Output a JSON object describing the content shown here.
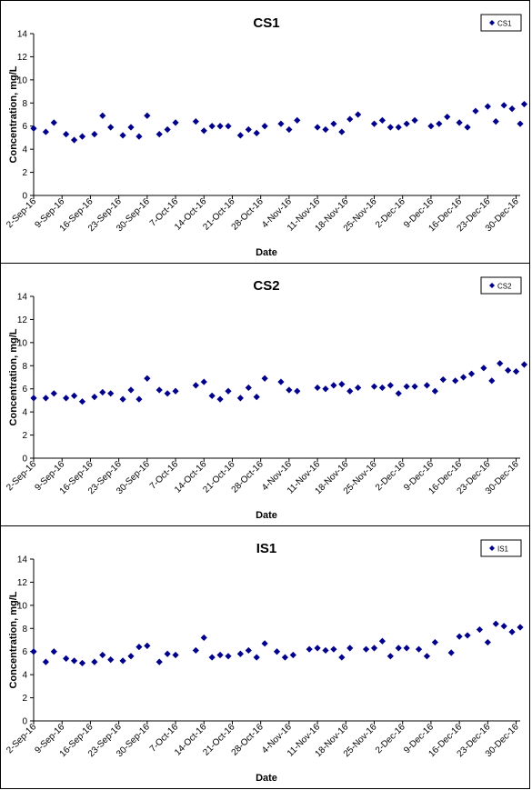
{
  "chart_data": [
    {
      "type": "scatter",
      "title": "CS1",
      "xlabel": "Date",
      "ylabel": "Concentration, mg/L",
      "ylim": [
        0,
        14
      ],
      "yticks": [
        "0",
        "2",
        "4",
        "6",
        "8",
        "10",
        "12",
        "14"
      ],
      "xticks": [
        "2-Sep-16",
        "9-Sep-16",
        "16-Sep-16",
        "23-Sep-16",
        "30-Sep-16",
        "7-Oct-16",
        "14-Oct-16",
        "21-Oct-16",
        "28-Oct-16",
        "4-Nov-16",
        "11-Nov-16",
        "18-Nov-16",
        "25-Nov-16",
        "2-Dec-16",
        "9-Dec-16",
        "16-Dec-16",
        "23-Dec-16",
        "30-Dec-16"
      ],
      "legend": "top-right",
      "marker_color": "#00008B",
      "series": [
        {
          "name": "CS1",
          "points": [
            [
              "2-Sep-16",
              5.8
            ],
            [
              "5-Sep-16",
              5.5
            ],
            [
              "7-Sep-16",
              6.3
            ],
            [
              "10-Sep-16",
              5.3
            ],
            [
              "12-Sep-16",
              4.8
            ],
            [
              "14-Sep-16",
              5.1
            ],
            [
              "17-Sep-16",
              5.3
            ],
            [
              "19-Sep-16",
              6.9
            ],
            [
              "21-Sep-16",
              5.9
            ],
            [
              "24-Sep-16",
              5.2
            ],
            [
              "26-Sep-16",
              5.9
            ],
            [
              "28-Sep-16",
              5.1
            ],
            [
              "30-Sep-16",
              6.9
            ],
            [
              "3-Oct-16",
              5.3
            ],
            [
              "5-Oct-16",
              5.7
            ],
            [
              "7-Oct-16",
              6.3
            ],
            [
              "12-Oct-16",
              6.4
            ],
            [
              "14-Oct-16",
              5.6
            ],
            [
              "16-Oct-16",
              6.0
            ],
            [
              "18-Oct-16",
              6.0
            ],
            [
              "20-Oct-16",
              6.0
            ],
            [
              "23-Oct-16",
              5.2
            ],
            [
              "25-Oct-16",
              5.7
            ],
            [
              "27-Oct-16",
              5.4
            ],
            [
              "29-Oct-16",
              6.0
            ],
            [
              "2-Nov-16",
              6.2
            ],
            [
              "4-Nov-16",
              5.7
            ],
            [
              "6-Nov-16",
              6.5
            ],
            [
              "11-Nov-16",
              5.9
            ],
            [
              "13-Nov-16",
              5.7
            ],
            [
              "15-Nov-16",
              6.2
            ],
            [
              "17-Nov-16",
              5.5
            ],
            [
              "19-Nov-16",
              6.6
            ],
            [
              "21-Nov-16",
              7.0
            ],
            [
              "25-Nov-16",
              6.2
            ],
            [
              "27-Nov-16",
              6.5
            ],
            [
              "29-Nov-16",
              5.9
            ],
            [
              "1-Dec-16",
              5.9
            ],
            [
              "3-Dec-16",
              6.2
            ],
            [
              "5-Dec-16",
              6.5
            ],
            [
              "9-Dec-16",
              6.0
            ],
            [
              "11-Dec-16",
              6.2
            ],
            [
              "13-Dec-16",
              6.8
            ],
            [
              "16-Dec-16",
              6.3
            ],
            [
              "18-Dec-16",
              5.9
            ],
            [
              "20-Dec-16",
              7.3
            ],
            [
              "23-Dec-16",
              7.7
            ],
            [
              "25-Dec-16",
              6.4
            ],
            [
              "27-Dec-16",
              7.8
            ],
            [
              "29-Dec-16",
              7.5
            ],
            [
              "31-Dec-16",
              6.2
            ],
            [
              "1-Jan-17",
              7.9
            ]
          ]
        }
      ]
    },
    {
      "type": "scatter",
      "title": "CS2",
      "xlabel": "Date",
      "ylabel": "Concentration, mg/L",
      "ylim": [
        0,
        14
      ],
      "yticks": [
        "0",
        "2",
        "4",
        "6",
        "8",
        "10",
        "12",
        "14"
      ],
      "xticks": [
        "2-Sep-16",
        "9-Sep-16",
        "16-Sep-16",
        "23-Sep-16",
        "30-Sep-16",
        "7-Oct-16",
        "14-Oct-16",
        "21-Oct-16",
        "28-Oct-16",
        "4-Nov-16",
        "11-Nov-16",
        "18-Nov-16",
        "25-Nov-16",
        "2-Dec-16",
        "9-Dec-16",
        "16-Dec-16",
        "23-Dec-16",
        "30-Dec-16"
      ],
      "legend": "top-right",
      "marker_color": "#00008B",
      "series": [
        {
          "name": "CS2",
          "points": [
            [
              "2-Sep-16",
              5.2
            ],
            [
              "5-Sep-16",
              5.2
            ],
            [
              "7-Sep-16",
              5.6
            ],
            [
              "10-Sep-16",
              5.2
            ],
            [
              "12-Sep-16",
              5.4
            ],
            [
              "14-Sep-16",
              4.9
            ],
            [
              "17-Sep-16",
              5.3
            ],
            [
              "19-Sep-16",
              5.7
            ],
            [
              "21-Sep-16",
              5.6
            ],
            [
              "24-Sep-16",
              5.1
            ],
            [
              "26-Sep-16",
              5.9
            ],
            [
              "28-Sep-16",
              5.1
            ],
            [
              "30-Sep-16",
              6.9
            ],
            [
              "3-Oct-16",
              5.9
            ],
            [
              "5-Oct-16",
              5.6
            ],
            [
              "7-Oct-16",
              5.8
            ],
            [
              "12-Oct-16",
              6.3
            ],
            [
              "14-Oct-16",
              6.6
            ],
            [
              "16-Oct-16",
              5.4
            ],
            [
              "18-Oct-16",
              5.1
            ],
            [
              "20-Oct-16",
              5.8
            ],
            [
              "23-Oct-16",
              5.2
            ],
            [
              "25-Oct-16",
              6.1
            ],
            [
              "27-Oct-16",
              5.3
            ],
            [
              "29-Oct-16",
              6.9
            ],
            [
              "2-Nov-16",
              6.6
            ],
            [
              "4-Nov-16",
              5.9
            ],
            [
              "6-Nov-16",
              5.8
            ],
            [
              "11-Nov-16",
              6.1
            ],
            [
              "13-Nov-16",
              6.0
            ],
            [
              "15-Nov-16",
              6.3
            ],
            [
              "17-Nov-16",
              6.4
            ],
            [
              "19-Nov-16",
              5.8
            ],
            [
              "21-Nov-16",
              6.1
            ],
            [
              "25-Nov-16",
              6.2
            ],
            [
              "27-Nov-16",
              6.1
            ],
            [
              "29-Nov-16",
              6.3
            ],
            [
              "1-Dec-16",
              5.6
            ],
            [
              "3-Dec-16",
              6.2
            ],
            [
              "5-Dec-16",
              6.2
            ],
            [
              "8-Dec-16",
              6.3
            ],
            [
              "10-Dec-16",
              5.8
            ],
            [
              "12-Dec-16",
              6.8
            ],
            [
              "15-Dec-16",
              6.7
            ],
            [
              "17-Dec-16",
              7.0
            ],
            [
              "19-Dec-16",
              7.3
            ],
            [
              "22-Dec-16",
              7.8
            ],
            [
              "24-Dec-16",
              6.7
            ],
            [
              "26-Dec-16",
              8.2
            ],
            [
              "28-Dec-16",
              7.6
            ],
            [
              "30-Dec-16",
              7.5
            ],
            [
              "1-Jan-17",
              8.1
            ]
          ]
        }
      ]
    },
    {
      "type": "scatter",
      "title": "IS1",
      "xlabel": "Date",
      "ylabel": "Concentration, mg/L",
      "ylim": [
        0,
        14
      ],
      "yticks": [
        "0",
        "2",
        "4",
        "6",
        "8",
        "10",
        "12",
        "14"
      ],
      "xticks": [
        "2-Sep-16",
        "9-Sep-16",
        "16-Sep-16",
        "23-Sep-16",
        "30-Sep-16",
        "7-Oct-16",
        "14-Oct-16",
        "21-Oct-16",
        "28-Oct-16",
        "4-Nov-16",
        "11-Nov-16",
        "18-Nov-16",
        "25-Nov-16",
        "2-Dec-16",
        "9-Dec-16",
        "16-Dec-16",
        "23-Dec-16",
        "30-Dec-16"
      ],
      "legend": "top-right",
      "marker_color": "#00008B",
      "series": [
        {
          "name": "IS1",
          "points": [
            [
              "2-Sep-16",
              6.0
            ],
            [
              "5-Sep-16",
              5.1
            ],
            [
              "7-Sep-16",
              6.0
            ],
            [
              "10-Sep-16",
              5.4
            ],
            [
              "12-Sep-16",
              5.2
            ],
            [
              "14-Sep-16",
              5.0
            ],
            [
              "17-Sep-16",
              5.1
            ],
            [
              "19-Sep-16",
              5.7
            ],
            [
              "21-Sep-16",
              5.3
            ],
            [
              "24-Sep-16",
              5.2
            ],
            [
              "26-Sep-16",
              5.6
            ],
            [
              "28-Sep-16",
              6.4
            ],
            [
              "30-Sep-16",
              6.5
            ],
            [
              "3-Oct-16",
              5.1
            ],
            [
              "5-Oct-16",
              5.8
            ],
            [
              "7-Oct-16",
              5.7
            ],
            [
              "12-Oct-16",
              6.1
            ],
            [
              "14-Oct-16",
              7.2
            ],
            [
              "16-Oct-16",
              5.5
            ],
            [
              "18-Oct-16",
              5.7
            ],
            [
              "20-Oct-16",
              5.6
            ],
            [
              "23-Oct-16",
              5.8
            ],
            [
              "25-Oct-16",
              6.1
            ],
            [
              "27-Oct-16",
              5.5
            ],
            [
              "29-Oct-16",
              6.7
            ],
            [
              "1-Nov-16",
              6.0
            ],
            [
              "3-Nov-16",
              5.5
            ],
            [
              "5-Nov-16",
              5.7
            ],
            [
              "9-Nov-16",
              6.2
            ],
            [
              "11-Nov-16",
              6.3
            ],
            [
              "13-Nov-16",
              6.1
            ],
            [
              "15-Nov-16",
              6.2
            ],
            [
              "17-Nov-16",
              5.5
            ],
            [
              "19-Nov-16",
              6.3
            ],
            [
              "23-Nov-16",
              6.2
            ],
            [
              "25-Nov-16",
              6.3
            ],
            [
              "27-Nov-16",
              6.9
            ],
            [
              "29-Nov-16",
              5.6
            ],
            [
              "1-Dec-16",
              6.3
            ],
            [
              "3-Dec-16",
              6.3
            ],
            [
              "6-Dec-16",
              6.2
            ],
            [
              "8-Dec-16",
              5.6
            ],
            [
              "10-Dec-16",
              6.8
            ],
            [
              "14-Dec-16",
              5.9
            ],
            [
              "16-Dec-16",
              7.3
            ],
            [
              "18-Dec-16",
              7.4
            ],
            [
              "21-Dec-16",
              7.9
            ],
            [
              "23-Dec-16",
              6.8
            ],
            [
              "25-Dec-16",
              8.4
            ],
            [
              "27-Dec-16",
              8.2
            ],
            [
              "29-Dec-16",
              7.7
            ],
            [
              "31-Dec-16",
              8.1
            ]
          ]
        }
      ]
    }
  ]
}
